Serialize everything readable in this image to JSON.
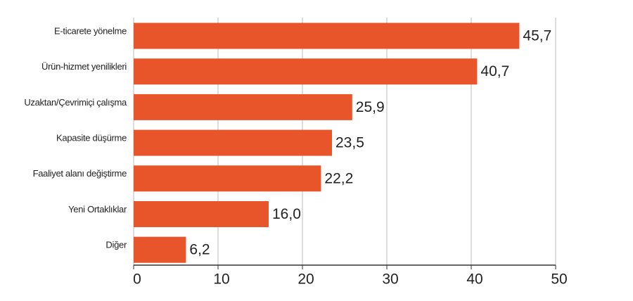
{
  "chart_data": {
    "type": "bar",
    "orientation": "horizontal",
    "categories": [
      "E-ticarete yönelme",
      "Ürün-hizmet yenilikleri",
      "Uzaktan/Çevrimiçi çalışma",
      "Kapasite düşürme",
      "Faaliyet alanı değiştirme",
      "Yeni Ortaklıklar",
      "Diğer"
    ],
    "values": [
      45.7,
      40.7,
      25.9,
      23.5,
      22.2,
      16.0,
      6.2
    ],
    "value_labels": [
      "45,7",
      "40,7",
      "25,9",
      "23,5",
      "22,2",
      "16,0",
      "6,2"
    ],
    "color": "#e8552b",
    "xlim": [
      0,
      50
    ],
    "xticks": [
      0,
      10,
      20,
      30,
      40,
      50
    ],
    "grid": true
  }
}
